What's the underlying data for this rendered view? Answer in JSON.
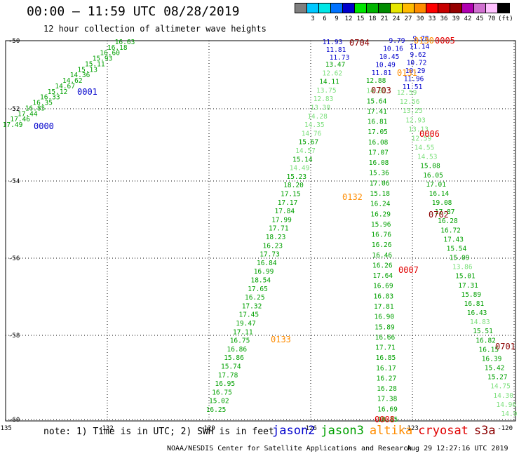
{
  "header": {
    "title": "00:00 – 11:59 UTC 08/28/2019",
    "subtitle": "12 hour collection of altimeter wave heights"
  },
  "color_scale": {
    "unit": "(ft)",
    "swatches": [
      {
        "color": "#7f7f7f",
        "label": ""
      },
      {
        "color": "#00c8ff",
        "label": "3"
      },
      {
        "color": "#00e6e6",
        "label": "6"
      },
      {
        "color": "#0072ff",
        "label": "9"
      },
      {
        "color": "#0000cc",
        "label": "12"
      },
      {
        "color": "#00e600",
        "label": "15"
      },
      {
        "color": "#00b400",
        "label": "18"
      },
      {
        "color": "#008c00",
        "label": "21"
      },
      {
        "color": "#e6e600",
        "label": "24"
      },
      {
        "color": "#ffbb00",
        "label": "27"
      },
      {
        "color": "#ff8c00",
        "label": "30"
      },
      {
        "color": "#ff0000",
        "label": "33"
      },
      {
        "color": "#c80000",
        "label": "36"
      },
      {
        "color": "#960000",
        "label": "39"
      },
      {
        "color": "#b000b0",
        "label": "42"
      },
      {
        "color": "#d070d0",
        "label": "45"
      },
      {
        "color": "#ffc0ff",
        "label": "70"
      },
      {
        "color": "#000000",
        "label": ""
      }
    ]
  },
  "colors": {
    "jason2": "#0000cc",
    "jason3": "#00a000",
    "altika": "#ff8c00",
    "cryosat": "#e00000",
    "s3a": "#8b0000",
    "light_green": "#7de07d",
    "grid": "#000000"
  },
  "map": {
    "lon_labels": [
      "-135",
      "-132",
      "-129",
      "-126",
      "-123",
      "-120"
    ],
    "lat_labels": [
      "-50",
      "-52",
      "-54",
      "-56",
      "-58",
      "-60"
    ]
  },
  "tracks": [
    {
      "id": "jason3-west",
      "color_key": "jason3",
      "values": [
        "16.63",
        "16.18",
        "16.60",
        "15.93",
        "15.11",
        "15.13",
        "14.36",
        "14.62",
        "14.67",
        "15.12",
        "16.33",
        "16.35",
        "16.85",
        "17.44",
        "17.46",
        "17.49"
      ]
    },
    {
      "id": "jason2-a",
      "color_key": "jason2",
      "values": [
        "11.93",
        "11.81",
        "11.73"
      ]
    },
    {
      "id": "jason2-b",
      "color_key": "jason2",
      "values": [
        "9.79",
        "10.16",
        "10.45",
        "10.49",
        "11.81"
      ]
    },
    {
      "id": "jason2-c",
      "color_key": "jason2",
      "values": [
        "9.78",
        "11.14",
        "9.62",
        "10.72",
        "10.29",
        "11.96",
        "11.51"
      ]
    },
    {
      "id": "jason3-a",
      "color_key": "jason3",
      "values": [
        "13.47",
        "12.62",
        "14.11",
        "13.75",
        "12.83",
        "13.38",
        "14.28",
        "14.35",
        "14.76",
        "15.67",
        "14.57",
        "15.14",
        "14.49",
        "15.23",
        "18.20",
        "17.15",
        "17.17",
        "17.84",
        "17.99",
        "17.71",
        "18.23",
        "16.23",
        "17.73",
        "16.84",
        "16.99",
        "18.54",
        "17.65",
        "16.25",
        "17.32",
        "17.45",
        "19.47",
        "17.11",
        "16.75",
        "16.86",
        "15.86",
        "15.74",
        "17.78",
        "16.95",
        "16.75",
        "15.02",
        "16.25"
      ]
    },
    {
      "id": "jason3-b",
      "color_key": "jason3",
      "values": [
        "12.88",
        "14.82",
        "15.64",
        "17.41",
        "16.81",
        "17.05",
        "16.08",
        "17.07",
        "16.08",
        "15.36",
        "17.06",
        "15.18",
        "16.24",
        "16.29",
        "15.96",
        "16.76",
        "16.26",
        "16.46",
        "16.26",
        "17.64",
        "16.69",
        "16.83",
        "17.81",
        "16.90",
        "15.89",
        "16.66",
        "17.71",
        "16.85",
        "16.17",
        "16.27",
        "16.28",
        "17.38",
        "16.69",
        "18.15"
      ]
    },
    {
      "id": "jason3-c",
      "color_key": "jason3",
      "values": [
        "12.59",
        "12.56",
        "13.25",
        "12.93",
        "13.13",
        "12.59",
        "14.55",
        "14.53",
        "15.08",
        "16.05",
        "17.01",
        "16.14",
        "19.08",
        "17.87",
        "16.28",
        "16.72",
        "17.43",
        "15.54",
        "15.09",
        "13.86",
        "15.01",
        "17.31",
        "15.89",
        "16.81",
        "16.43",
        "14.83",
        "15.51",
        "16.82",
        "16.15",
        "16.39",
        "15.42",
        "15.27",
        "14.75",
        "14.30",
        "14.96",
        "14.9"
      ]
    }
  ],
  "pass_labels": [
    {
      "text": "0000",
      "color_key": "jason2"
    },
    {
      "text": "0001",
      "color_key": "jason2"
    },
    {
      "text": "0704",
      "color_key": "s3a"
    },
    {
      "text": "0703",
      "color_key": "s3a"
    },
    {
      "text": "0702",
      "color_key": "s3a"
    },
    {
      "text": "0701",
      "color_key": "s3a"
    },
    {
      "text": "0005",
      "color_key": "cryosat"
    },
    {
      "text": "0006",
      "color_key": "cryosat"
    },
    {
      "text": "0007",
      "color_key": "cryosat"
    },
    {
      "text": "0008",
      "color_key": "cryosat"
    },
    {
      "text": "0131",
      "color_key": "altika"
    },
    {
      "text": "0132",
      "color_key": "altika"
    },
    {
      "text": "0133",
      "color_key": "altika"
    },
    {
      "text": "0130",
      "color_key": "altika"
    }
  ],
  "footer": {
    "note": "note: 1) Time is in UTC; 2) SWH is in feet",
    "satellites": [
      {
        "name": "jason2",
        "color": "#0000cc"
      },
      {
        "name": "jason3",
        "color": "#00a000"
      },
      {
        "name": "altika",
        "color": "#ff8c00"
      },
      {
        "name": "cryosat",
        "color": "#e00000"
      },
      {
        "name": "s3a",
        "color": "#8b0000"
      }
    ],
    "credit": "NOAA/NESDIS Center for Satellite Applications and Research",
    "timestamp": "Aug 29 12:27:16 UTC 2019"
  }
}
